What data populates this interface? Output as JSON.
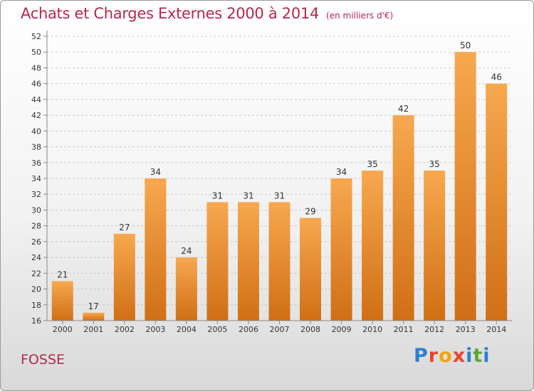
{
  "header": {
    "title": "Achats et Charges Externes 2000 à 2014",
    "unit": "(en milliers d'€)"
  },
  "footer": {
    "commune": "FOSSE",
    "logo_text": "Proxiti"
  },
  "colors": {
    "bar_light": "#f7a84f",
    "bar_dark": "#d06f15",
    "title": "#b5284f"
  },
  "chart_data": {
    "type": "bar",
    "title": "Achats et Charges Externes 2000 à 2014",
    "xlabel": "",
    "ylabel": "",
    "categories": [
      "2000",
      "2001",
      "2002",
      "2003",
      "2004",
      "2005",
      "2006",
      "2007",
      "2008",
      "2009",
      "2010",
      "2011",
      "2012",
      "2013",
      "2014"
    ],
    "values": [
      21,
      17,
      27,
      34,
      24,
      31,
      31,
      31,
      29,
      34,
      35,
      42,
      35,
      50,
      46
    ],
    "ylim": [
      16,
      52
    ],
    "yticks": [
      16,
      18,
      20,
      22,
      24,
      26,
      28,
      30,
      32,
      34,
      36,
      38,
      40,
      42,
      44,
      46,
      48,
      50,
      52
    ],
    "grid": "horizontal-dashed",
    "data_labels": true
  }
}
